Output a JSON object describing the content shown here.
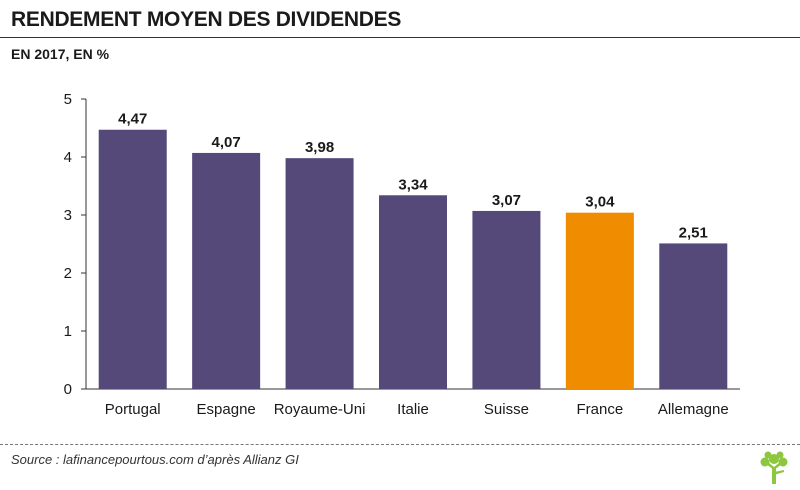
{
  "title": "RENDEMENT MOYEN DES DIVIDENDES",
  "subtitle": "EN 2017, EN %",
  "source": "Source : lafinancepourtous.com d’après Allianz GI",
  "logo_icon": "tree-icon",
  "colors": {
    "bar": "#55497a",
    "highlight": "#f08c00",
    "logo": "#8dc63f"
  },
  "chart_data": {
    "type": "bar",
    "title": "RENDEMENT MOYEN DES DIVIDENDES",
    "subtitle": "EN 2017, EN %",
    "xlabel": "",
    "ylabel": "",
    "ylim": [
      0,
      5
    ],
    "yticks": [
      "0",
      "1",
      "2",
      "3",
      "4",
      "5"
    ],
    "grid": false,
    "categories": [
      "Portugal",
      "Espagne",
      "Royaume-Uni",
      "Italie",
      "Suisse",
      "France",
      "Allemagne"
    ],
    "values": [
      4.47,
      4.07,
      3.98,
      3.34,
      3.07,
      3.04,
      2.51
    ],
    "value_labels": [
      "4,47",
      "4,07",
      "3,98",
      "3,34",
      "3,07",
      "3,04",
      "2,51"
    ],
    "highlight_category": "France"
  }
}
